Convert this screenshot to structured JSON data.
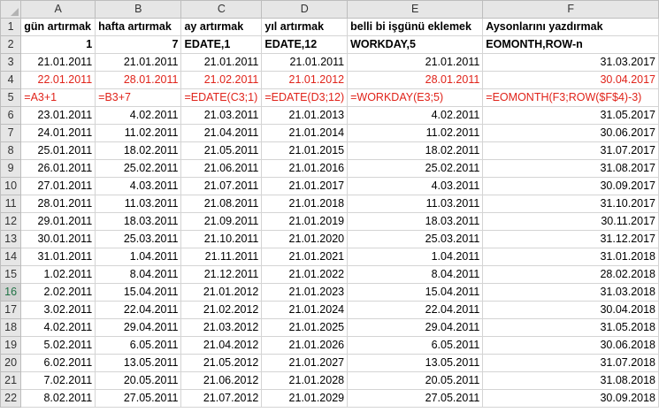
{
  "columns": [
    "A",
    "B",
    "C",
    "D",
    "E",
    "F"
  ],
  "rows": [
    {
      "n": "1",
      "cells": [
        {
          "v": "gün artırmak",
          "c": "b"
        },
        {
          "v": "hafta artırmak",
          "c": "b"
        },
        {
          "v": "ay artırmak",
          "c": "b"
        },
        {
          "v": "yıl artırmak",
          "c": "b"
        },
        {
          "v": "belli bi işgünü eklemek",
          "c": "b"
        },
        {
          "v": "Aysonlarını yazdırmak",
          "c": "b"
        }
      ]
    },
    {
      "n": "2",
      "cells": [
        {
          "v": "1",
          "c": "b r"
        },
        {
          "v": "7",
          "c": "b r"
        },
        {
          "v": "EDATE,1",
          "c": "b"
        },
        {
          "v": "EDATE,12",
          "c": "b"
        },
        {
          "v": "WORKDAY,5",
          "c": "b"
        },
        {
          "v": "EOMONTH,ROW-n",
          "c": "b"
        }
      ]
    },
    {
      "n": "3",
      "cells": [
        {
          "v": "21.01.2011",
          "c": "r"
        },
        {
          "v": "21.01.2011",
          "c": "r"
        },
        {
          "v": "21.01.2011",
          "c": "r"
        },
        {
          "v": "21.01.2011",
          "c": "r"
        },
        {
          "v": "21.01.2011",
          "c": "r"
        },
        {
          "v": "31.03.2017",
          "c": "r"
        }
      ]
    },
    {
      "n": "4",
      "cells": [
        {
          "v": "22.01.2011",
          "c": "r red"
        },
        {
          "v": "28.01.2011",
          "c": "r red"
        },
        {
          "v": "21.02.2011",
          "c": "r red"
        },
        {
          "v": "21.01.2012",
          "c": "r red"
        },
        {
          "v": "28.01.2011",
          "c": "r red"
        },
        {
          "v": "30.04.2017",
          "c": "r red"
        }
      ]
    },
    {
      "n": "5",
      "cells": [
        {
          "v": "=A3+1",
          "c": "red"
        },
        {
          "v": "=B3+7",
          "c": "red"
        },
        {
          "v": "=EDATE(C3;1)",
          "c": "red"
        },
        {
          "v": "=EDATE(D3;12)",
          "c": "red"
        },
        {
          "v": "=WORKDAY(E3;5)",
          "c": "red"
        },
        {
          "v": "=EOMONTH(F3;ROW($F$4)-3)",
          "c": "red"
        }
      ]
    },
    {
      "n": "6",
      "cells": [
        {
          "v": "23.01.2011",
          "c": "r"
        },
        {
          "v": "4.02.2011",
          "c": "r"
        },
        {
          "v": "21.03.2011",
          "c": "r"
        },
        {
          "v": "21.01.2013",
          "c": "r"
        },
        {
          "v": "4.02.2011",
          "c": "r"
        },
        {
          "v": "31.05.2017",
          "c": "r"
        }
      ]
    },
    {
      "n": "7",
      "cells": [
        {
          "v": "24.01.2011",
          "c": "r"
        },
        {
          "v": "11.02.2011",
          "c": "r"
        },
        {
          "v": "21.04.2011",
          "c": "r"
        },
        {
          "v": "21.01.2014",
          "c": "r"
        },
        {
          "v": "11.02.2011",
          "c": "r"
        },
        {
          "v": "30.06.2017",
          "c": "r"
        }
      ]
    },
    {
      "n": "8",
      "cells": [
        {
          "v": "25.01.2011",
          "c": "r"
        },
        {
          "v": "18.02.2011",
          "c": "r"
        },
        {
          "v": "21.05.2011",
          "c": "r"
        },
        {
          "v": "21.01.2015",
          "c": "r"
        },
        {
          "v": "18.02.2011",
          "c": "r"
        },
        {
          "v": "31.07.2017",
          "c": "r"
        }
      ]
    },
    {
      "n": "9",
      "cells": [
        {
          "v": "26.01.2011",
          "c": "r"
        },
        {
          "v": "25.02.2011",
          "c": "r"
        },
        {
          "v": "21.06.2011",
          "c": "r"
        },
        {
          "v": "21.01.2016",
          "c": "r"
        },
        {
          "v": "25.02.2011",
          "c": "r"
        },
        {
          "v": "31.08.2017",
          "c": "r"
        }
      ]
    },
    {
      "n": "10",
      "cells": [
        {
          "v": "27.01.2011",
          "c": "r"
        },
        {
          "v": "4.03.2011",
          "c": "r"
        },
        {
          "v": "21.07.2011",
          "c": "r"
        },
        {
          "v": "21.01.2017",
          "c": "r"
        },
        {
          "v": "4.03.2011",
          "c": "r"
        },
        {
          "v": "30.09.2017",
          "c": "r"
        }
      ]
    },
    {
      "n": "11",
      "cells": [
        {
          "v": "28.01.2011",
          "c": "r"
        },
        {
          "v": "11.03.2011",
          "c": "r"
        },
        {
          "v": "21.08.2011",
          "c": "r"
        },
        {
          "v": "21.01.2018",
          "c": "r"
        },
        {
          "v": "11.03.2011",
          "c": "r"
        },
        {
          "v": "31.10.2017",
          "c": "r"
        }
      ]
    },
    {
      "n": "12",
      "cells": [
        {
          "v": "29.01.2011",
          "c": "r"
        },
        {
          "v": "18.03.2011",
          "c": "r"
        },
        {
          "v": "21.09.2011",
          "c": "r"
        },
        {
          "v": "21.01.2019",
          "c": "r"
        },
        {
          "v": "18.03.2011",
          "c": "r"
        },
        {
          "v": "30.11.2017",
          "c": "r"
        }
      ]
    },
    {
      "n": "13",
      "cells": [
        {
          "v": "30.01.2011",
          "c": "r"
        },
        {
          "v": "25.03.2011",
          "c": "r"
        },
        {
          "v": "21.10.2011",
          "c": "r"
        },
        {
          "v": "21.01.2020",
          "c": "r"
        },
        {
          "v": "25.03.2011",
          "c": "r"
        },
        {
          "v": "31.12.2017",
          "c": "r"
        }
      ]
    },
    {
      "n": "14",
      "cells": [
        {
          "v": "31.01.2011",
          "c": "r"
        },
        {
          "v": "1.04.2011",
          "c": "r"
        },
        {
          "v": "21.11.2011",
          "c": "r"
        },
        {
          "v": "21.01.2021",
          "c": "r"
        },
        {
          "v": "1.04.2011",
          "c": "r"
        },
        {
          "v": "31.01.2018",
          "c": "r"
        }
      ]
    },
    {
      "n": "15",
      "cells": [
        {
          "v": "1.02.2011",
          "c": "r"
        },
        {
          "v": "8.04.2011",
          "c": "r"
        },
        {
          "v": "21.12.2011",
          "c": "r"
        },
        {
          "v": "21.01.2022",
          "c": "r"
        },
        {
          "v": "8.04.2011",
          "c": "r"
        },
        {
          "v": "28.02.2018",
          "c": "r"
        }
      ]
    },
    {
      "n": "16",
      "sel": true,
      "cells": [
        {
          "v": "2.02.2011",
          "c": "r"
        },
        {
          "v": "15.04.2011",
          "c": "r"
        },
        {
          "v": "21.01.2012",
          "c": "r"
        },
        {
          "v": "21.01.2023",
          "c": "r"
        },
        {
          "v": "15.04.2011",
          "c": "r"
        },
        {
          "v": "31.03.2018",
          "c": "r"
        }
      ]
    },
    {
      "n": "17",
      "cells": [
        {
          "v": "3.02.2011",
          "c": "r"
        },
        {
          "v": "22.04.2011",
          "c": "r"
        },
        {
          "v": "21.02.2012",
          "c": "r"
        },
        {
          "v": "21.01.2024",
          "c": "r"
        },
        {
          "v": "22.04.2011",
          "c": "r"
        },
        {
          "v": "30.04.2018",
          "c": "r"
        }
      ]
    },
    {
      "n": "18",
      "cells": [
        {
          "v": "4.02.2011",
          "c": "r"
        },
        {
          "v": "29.04.2011",
          "c": "r"
        },
        {
          "v": "21.03.2012",
          "c": "r"
        },
        {
          "v": "21.01.2025",
          "c": "r"
        },
        {
          "v": "29.04.2011",
          "c": "r"
        },
        {
          "v": "31.05.2018",
          "c": "r"
        }
      ]
    },
    {
      "n": "19",
      "cells": [
        {
          "v": "5.02.2011",
          "c": "r"
        },
        {
          "v": "6.05.2011",
          "c": "r"
        },
        {
          "v": "21.04.2012",
          "c": "r"
        },
        {
          "v": "21.01.2026",
          "c": "r"
        },
        {
          "v": "6.05.2011",
          "c": "r"
        },
        {
          "v": "30.06.2018",
          "c": "r"
        }
      ]
    },
    {
      "n": "20",
      "cells": [
        {
          "v": "6.02.2011",
          "c": "r"
        },
        {
          "v": "13.05.2011",
          "c": "r"
        },
        {
          "v": "21.05.2012",
          "c": "r"
        },
        {
          "v": "21.01.2027",
          "c": "r"
        },
        {
          "v": "13.05.2011",
          "c": "r"
        },
        {
          "v": "31.07.2018",
          "c": "r"
        }
      ]
    },
    {
      "n": "21",
      "cells": [
        {
          "v": "7.02.2011",
          "c": "r"
        },
        {
          "v": "20.05.2011",
          "c": "r"
        },
        {
          "v": "21.06.2012",
          "c": "r"
        },
        {
          "v": "21.01.2028",
          "c": "r"
        },
        {
          "v": "20.05.2011",
          "c": "r"
        },
        {
          "v": "31.08.2018",
          "c": "r"
        }
      ]
    },
    {
      "n": "22",
      "cells": [
        {
          "v": "8.02.2011",
          "c": "r"
        },
        {
          "v": "27.05.2011",
          "c": "r"
        },
        {
          "v": "21.07.2012",
          "c": "r"
        },
        {
          "v": "21.01.2029",
          "c": "r"
        },
        {
          "v": "27.05.2011",
          "c": "r"
        },
        {
          "v": "30.09.2018",
          "c": "r"
        }
      ]
    }
  ]
}
